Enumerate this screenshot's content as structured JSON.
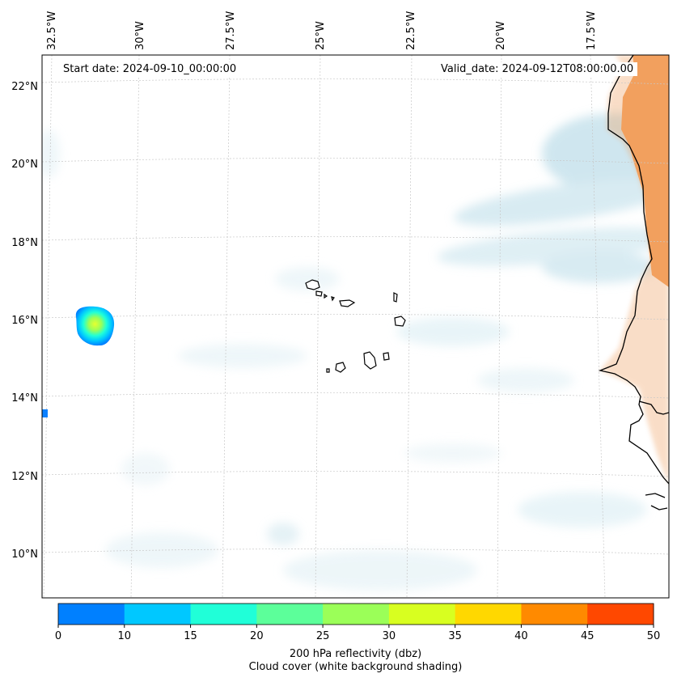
{
  "map": {
    "start_date": "Start date: 2024-09-10_00:00:00",
    "valid_date": "Valid_date: 2024-09-12T08:00:00.00",
    "lon_labels": [
      "32.5°W",
      "30°W",
      "27.5°W",
      "25°W",
      "22.5°W",
      "20°W",
      "17.5°W"
    ],
    "lat_labels": [
      "22°N",
      "20°N",
      "18°N",
      "16°N",
      "14°N",
      "12°N",
      "10°N"
    ],
    "land_color": "#f2a05e",
    "cloud_color": "#b9dce8"
  },
  "colorbar": {
    "ticks": [
      "0",
      "10",
      "15",
      "20",
      "25",
      "30",
      "35",
      "40",
      "45",
      "50"
    ],
    "colors": [
      "#0080ff",
      "#00c8ff",
      "#20ffd8",
      "#5cff9a",
      "#9bff58",
      "#d8ff20",
      "#ffd800",
      "#ff8a00",
      "#ff4800"
    ],
    "label_line1": "200 hPa reflectivity (dbz)",
    "label_line2": "Cloud cover (white background shading)"
  }
}
